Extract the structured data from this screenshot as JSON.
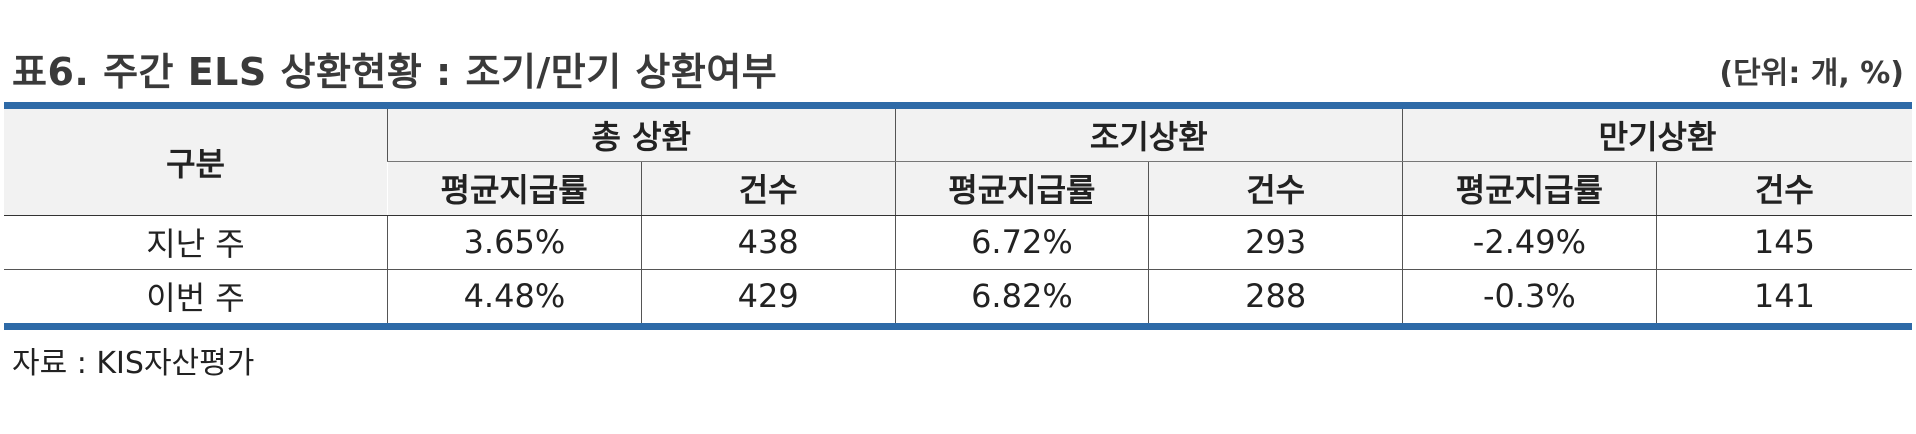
{
  "header": {
    "title": "표6. 주간 ELS 상환현황 : 조기/만기 상환여부",
    "unit": "(단위: 개, %)"
  },
  "table": {
    "row_header_label": "구분",
    "groups": [
      "총 상환",
      "조기상환",
      "만기상환"
    ],
    "sub_columns": [
      "평균지급률",
      "건수",
      "평균지급률",
      "건수",
      "평균지급률",
      "건수"
    ],
    "rows": [
      {
        "label": "지난 주",
        "cells": [
          "3.65%",
          "438",
          "6.72%",
          "293",
          "-2.49%",
          "145"
        ]
      },
      {
        "label": "이번 주",
        "cells": [
          "4.48%",
          "429",
          "6.82%",
          "288",
          "-0.3%",
          "141"
        ]
      }
    ]
  },
  "footer": {
    "source": "자료 : KIS자산평가"
  },
  "colors": {
    "accent_rule": "#2e6aa7",
    "header_bg": "#f2f2f2"
  }
}
